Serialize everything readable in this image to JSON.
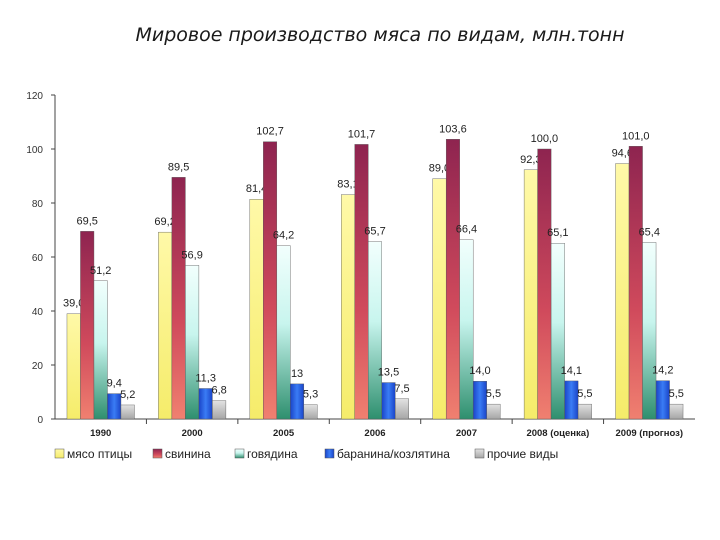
{
  "chart_data": {
    "type": "bar",
    "title": "Мировое производство мяса по видам, млн.тонн",
    "categories": [
      "1990",
      "2000",
      "2005",
      "2006",
      "2007",
      "2008 (оценка)",
      "2009 (прогноз)"
    ],
    "ylim": [
      0,
      120
    ],
    "yticks": [
      "0",
      "20",
      "40",
      "60",
      "80",
      "100",
      "120"
    ],
    "series": [
      {
        "name": "мясо птицы",
        "color": "#f5f08a",
        "values": [
          39.0,
          69.2,
          81.4,
          83.1,
          89.0,
          92.3,
          94.6
        ],
        "labels": [
          "39,0",
          "69,2",
          "81,4",
          "83,1",
          "89,0",
          "92,3",
          "94,6"
        ]
      },
      {
        "name": "свинина",
        "color": "#a8335a",
        "values": [
          69.5,
          89.5,
          102.7,
          101.7,
          103.6,
          100.0,
          101.0
        ],
        "labels": [
          "69,5",
          "89,5",
          "102,7",
          "101,7",
          "103,6",
          "100,0",
          "101,0"
        ]
      },
      {
        "name": "говядина",
        "color": "#7fd8c8",
        "values": [
          51.2,
          56.9,
          64.2,
          65.7,
          66.4,
          65.1,
          65.4
        ],
        "labels": [
          "51,2",
          "56,9",
          "64,2",
          "65,7",
          "66,4",
          "65,1",
          "65,4"
        ]
      },
      {
        "name": "баранина/козлятина",
        "color": "#2255dd",
        "values": [
          9.4,
          11.3,
          13.0,
          13.5,
          14.0,
          14.1,
          14.2
        ],
        "labels": [
          "9,4",
          "11,3",
          "13",
          "13,5",
          "14,0",
          "14,1",
          "14,2"
        ]
      },
      {
        "name": "прочие виды",
        "color": "#bcbcbc",
        "values": [
          5.2,
          6.8,
          5.3,
          7.5,
          5.5,
          5.5,
          5.5
        ],
        "labels": [
          "5,2",
          "6,8",
          "5,3",
          "7,5",
          "5,5",
          "5,5",
          "5,5"
        ]
      }
    ],
    "legend_position": "bottom",
    "grid": false
  }
}
